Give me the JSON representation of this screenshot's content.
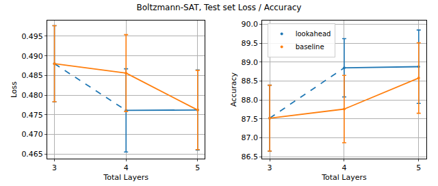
{
  "title": "Boltzmann-SAT, Test set Loss / Accuracy",
  "chart_data": [
    {
      "type": "line",
      "x_label": "Total Layers",
      "y_label": "Loss",
      "x": [
        3,
        4,
        5
      ],
      "xlim": [
        2.9,
        5.1
      ],
      "xticks": [
        3,
        4,
        5
      ],
      "ylim": [
        0.4638,
        0.499
      ],
      "yticks": [
        0.465,
        {
          "value": 0.47,
          "label": "0.470"
        },
        0.475,
        {
          "value": 0.48,
          "label": "0.480"
        },
        0.485,
        {
          "value": 0.49,
          "label": "0.490"
        },
        0.495
      ],
      "grid": true,
      "series": [
        {
          "name": "lookahead",
          "color": "#1f77b4",
          "values": [
            0.488,
            0.4761,
            0.4762
          ],
          "errors": [
            0.0097,
            0.0106,
            0.0102
          ],
          "line_style": "dashed_first_segment"
        },
        {
          "name": "baseline",
          "color": "#ff7f0e",
          "values": [
            0.488,
            0.4856,
            0.4762
          ],
          "errors": [
            0.0097,
            0.0098,
            0.0101
          ],
          "line_style": "solid"
        }
      ]
    },
    {
      "type": "line",
      "x_label": "Total Layers",
      "y_label": "Accuracy",
      "x": [
        3,
        4,
        5
      ],
      "xlim": [
        2.9,
        5.1
      ],
      "xticks": [
        3,
        4,
        5
      ],
      "ylim": [
        86.45,
        90.1
      ],
      "yticks": [
        86.5,
        {
          "value": 87,
          "label": "87.0"
        },
        87.5,
        {
          "value": 88,
          "label": "88.0"
        },
        88.5,
        {
          "value": 89,
          "label": "89.0"
        },
        89.5,
        {
          "value": 90,
          "label": "90.0"
        }
      ],
      "grid": true,
      "legend": "upper left",
      "series": [
        {
          "name": "lookahead",
          "color": "#1f77b4",
          "values": [
            87.52,
            88.85,
            88.88
          ],
          "errors": [
            0.87,
            0.77,
            0.97
          ],
          "line_style": "dashed_first_segment"
        },
        {
          "name": "baseline",
          "color": "#ff7f0e",
          "values": [
            87.52,
            87.76,
            88.58
          ],
          "errors": [
            0.87,
            0.89,
            0.93
          ],
          "line_style": "solid"
        }
      ]
    }
  ]
}
